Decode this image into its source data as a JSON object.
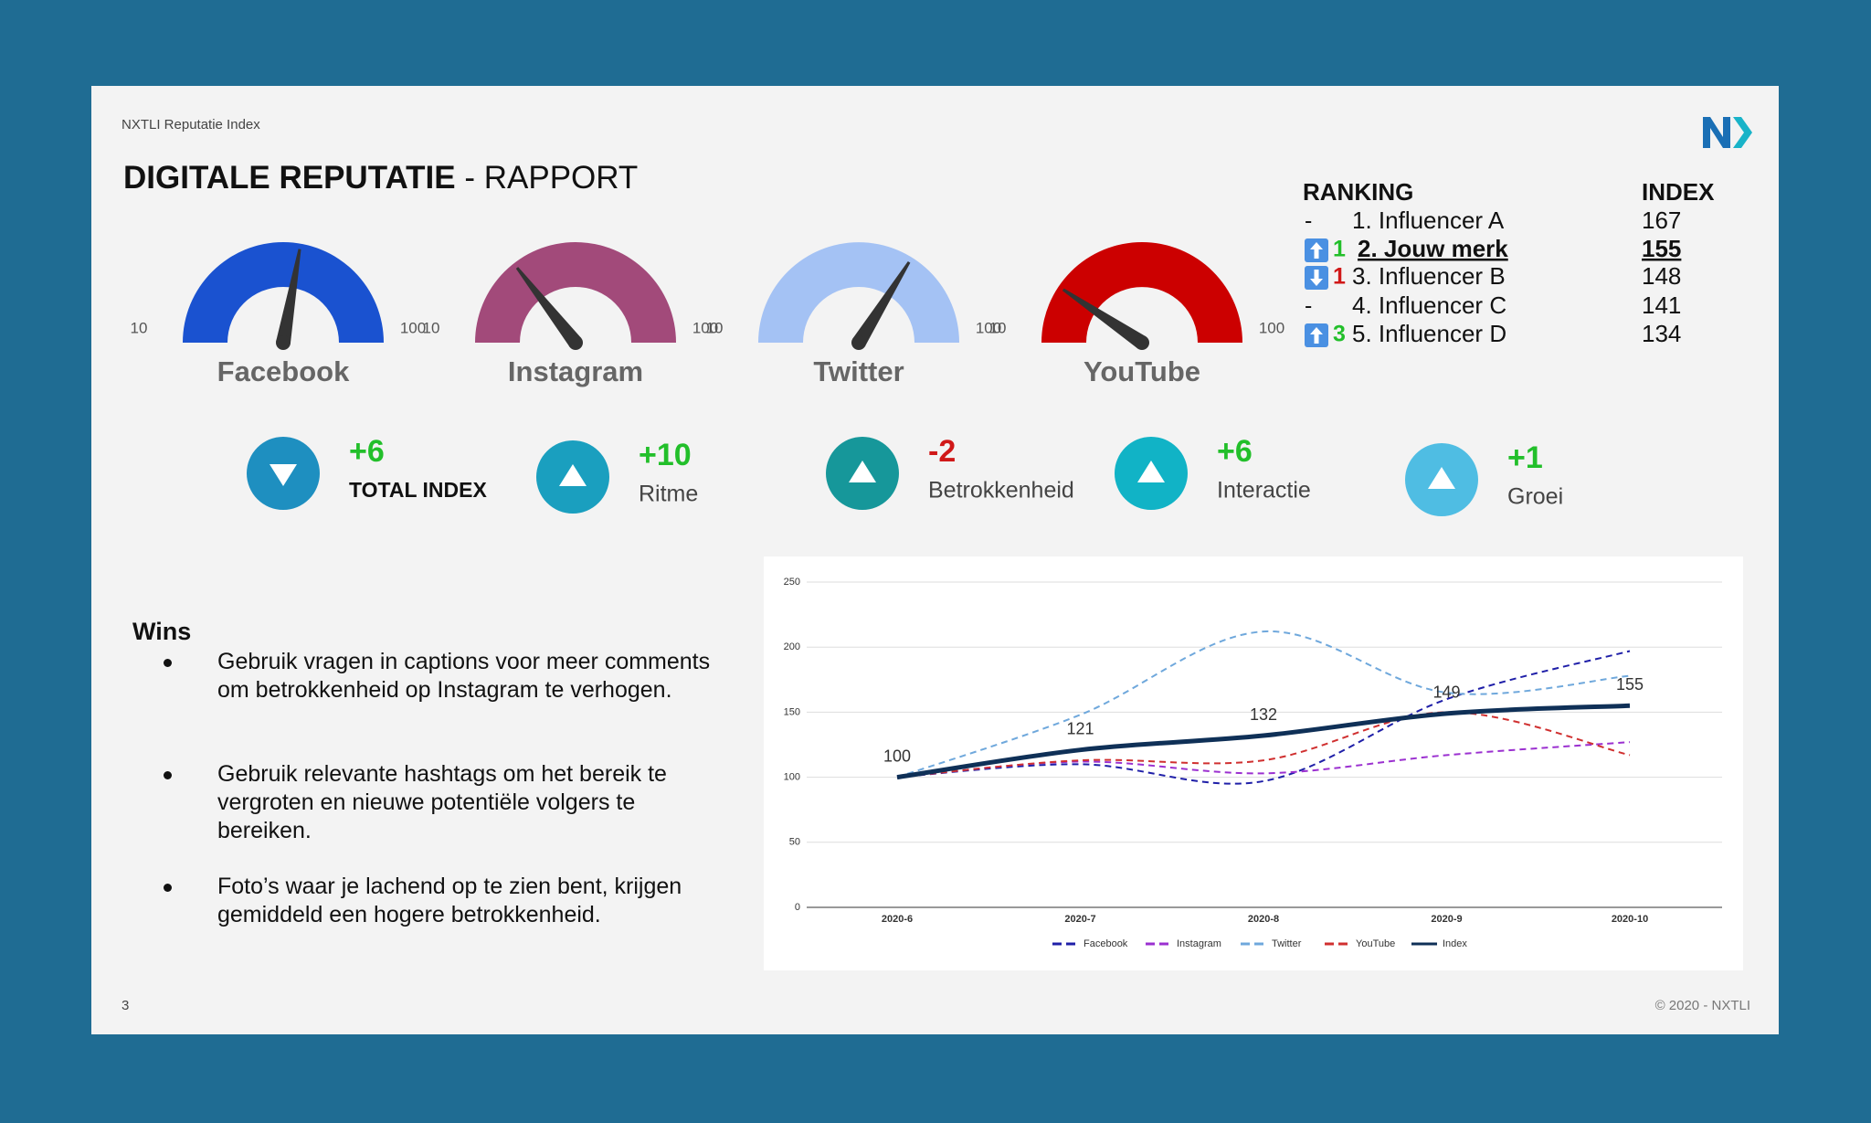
{
  "header": {
    "caption": "NXTLI Reputatie Index",
    "title_bold": "DIGITALE REPUTATIE",
    "title_rest": "- RAPPORT"
  },
  "gauges": [
    {
      "name": "Facebook",
      "min": 10,
      "max": 100,
      "value": 60,
      "color": "#1a52d0"
    },
    {
      "name": "Instagram",
      "min": 10,
      "max": 100,
      "value": 36,
      "color": "#a24a7a"
    },
    {
      "name": "Twitter",
      "min": 10,
      "max": 100,
      "value": 71,
      "color": "#a4c2f4"
    },
    {
      "name": "YouTube",
      "min": 10,
      "max": 100,
      "value": 27,
      "color": "#cc0000"
    }
  ],
  "kpis": [
    {
      "value": "+6",
      "label": "TOTAL INDEX",
      "color": "#22bf2a"
    },
    {
      "value": "+10",
      "label": "Ritme",
      "color": "#22bf2a"
    },
    {
      "value": "-2",
      "label": "Betrokkenheid",
      "color": "#d01818"
    },
    {
      "value": "+6",
      "label": "Interactie",
      "color": "#22bf2a"
    },
    {
      "value": "+1",
      "label": "Groei",
      "color": "#22bf2a"
    }
  ],
  "ranking": {
    "header": "RANKING",
    "index_header": "INDEX",
    "rows": [
      {
        "change": "-",
        "name": "1. Influencer A",
        "index": 167
      },
      {
        "change": "1",
        "change_color": "#22bf2a",
        "name": "2. Jouw merk",
        "index": 155
      },
      {
        "change": "1",
        "change_color": "#d01818",
        "name": "3. Influencer B",
        "index": 148
      },
      {
        "change": "-",
        "name": "4. Influencer C",
        "index": 141
      },
      {
        "change": "3",
        "change_color": "#22bf2a",
        "name": "5. Influencer D",
        "index": 134
      }
    ]
  },
  "wins": {
    "title": "Wins",
    "items": [
      "Gebruik vragen in captions voor meer comments om betrokkenheid op Instagram te verhogen.",
      "Gebruik relevante hashtags om het bereik te vergroten en nieuwe potentiële volgers te bereiken.",
      "Foto’s waar je lachend op te zien bent, krijgen gemiddeld een hogere betrokkenheid."
    ]
  },
  "chart_data": {
    "type": "line",
    "categories": [
      "2020-6",
      "2020-7",
      "2020-8",
      "2020-9",
      "2020-10"
    ],
    "series": [
      {
        "name": "Facebook",
        "color": "#1f1fa8",
        "values": [
          100,
          110,
          97,
          160,
          197
        ]
      },
      {
        "name": "Instagram",
        "color": "#9b30d0",
        "values": [
          100,
          112,
          103,
          117,
          127
        ]
      },
      {
        "name": "Twitter",
        "color": "#6fa8dc",
        "values": [
          100,
          148,
          212,
          165,
          178
        ]
      },
      {
        "name": "YouTube",
        "color": "#d03030",
        "values": [
          100,
          113,
          113,
          150,
          117
        ]
      },
      {
        "name": "Index",
        "color": "#0f3057",
        "values": [
          100,
          121,
          132,
          149,
          155
        ]
      }
    ],
    "ylim": [
      0,
      250
    ],
    "yticks": [
      0,
      50,
      100,
      150,
      200,
      250
    ],
    "grid": true,
    "legend": "bottom"
  },
  "footer": {
    "page": "3",
    "copyright": "© 2020 - NXTLI"
  }
}
